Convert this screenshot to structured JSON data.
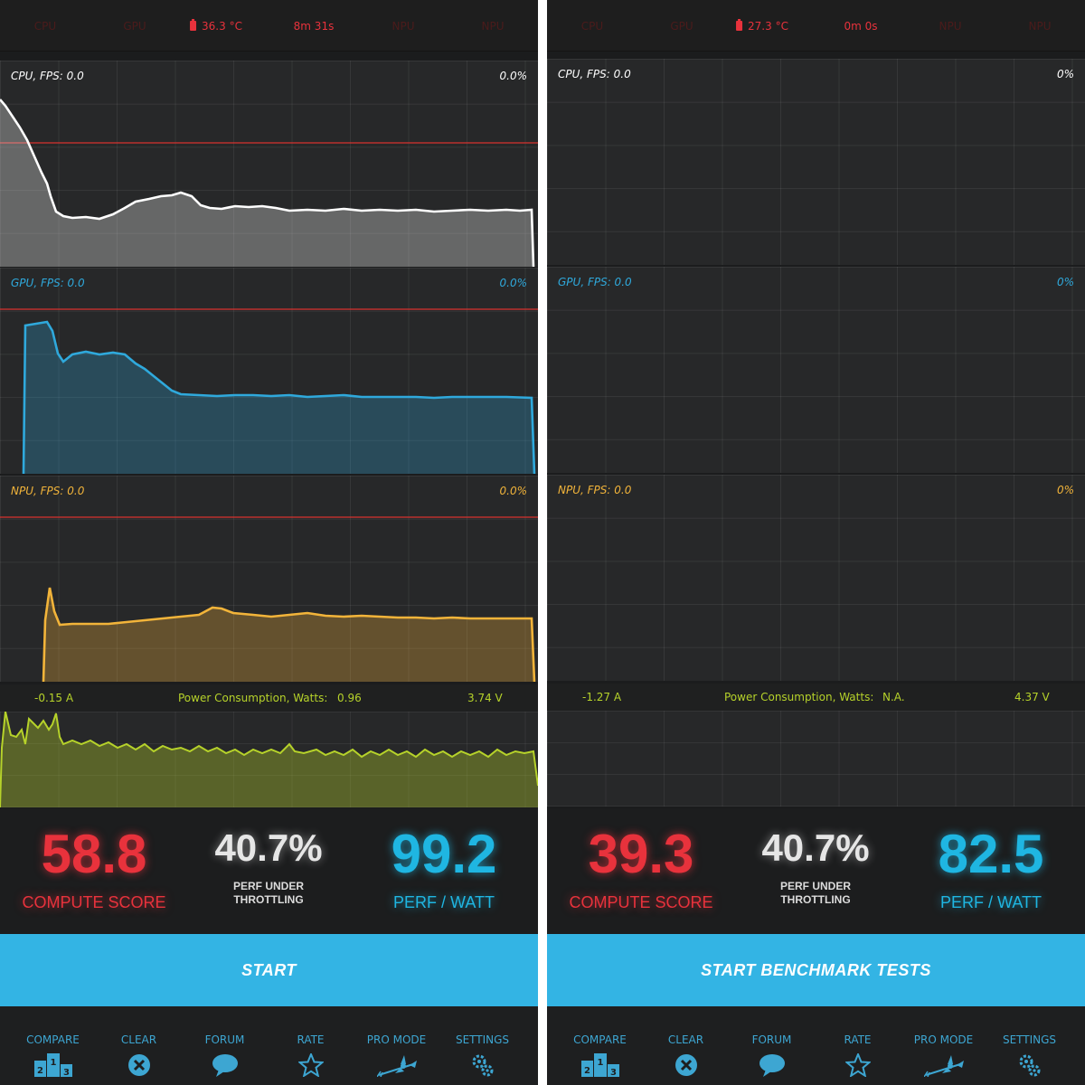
{
  "screens": [
    {
      "status": {
        "cpu": "CPU",
        "gpu": "GPU",
        "temp": "36.3 °C",
        "time": "8m 31s",
        "npu1": "NPU",
        "npu2": "NPU"
      },
      "cpu_panel": {
        "label": "CPU, FPS:  0.0",
        "pct": "0.0%"
      },
      "gpu_panel": {
        "label": "GPU, FPS:  0.0",
        "pct": "0.0%"
      },
      "npu_panel": {
        "label": "NPU, FPS:  0.0",
        "pct": "0.0%"
      },
      "power": {
        "current": "-0.15 A",
        "label": "Power Consumption, Watts:",
        "value": "0.96",
        "voltage": "3.74 V"
      },
      "scores": {
        "compute_value": "58.8",
        "compute_label": "COMPUTE SCORE",
        "throttle_value": "40.7%",
        "throttle_label_1": "PERF UNDER",
        "throttle_label_2": "THROTTLING",
        "perfwatt_value": "99.2",
        "perfwatt_label": "PERF / WATT"
      },
      "start_label": "START"
    },
    {
      "status": {
        "cpu": "CPU",
        "gpu": "GPU",
        "temp": "27.3 °C",
        "time": "0m 0s",
        "npu1": "NPU",
        "npu2": "NPU"
      },
      "cpu_panel": {
        "label": "CPU, FPS:  0.0",
        "pct": "0%"
      },
      "gpu_panel": {
        "label": "GPU, FPS:  0.0",
        "pct": "0%"
      },
      "npu_panel": {
        "label": "NPU, FPS:  0.0",
        "pct": "0%"
      },
      "power": {
        "current": "-1.27 A",
        "label": "Power Consumption, Watts:",
        "value": "N.A.",
        "voltage": "4.37 V"
      },
      "scores": {
        "compute_value": "39.3",
        "compute_label": "COMPUTE SCORE",
        "throttle_value": "40.7%",
        "throttle_label_1": "PERF UNDER",
        "throttle_label_2": "THROTTLING",
        "perfwatt_value": "82.5",
        "perfwatt_label": "PERF / WATT"
      },
      "start_label": "START  BENCHMARK  TESTS"
    }
  ],
  "nav": {
    "compare": "COMPARE",
    "clear": "CLEAR",
    "forum": "FORUM",
    "rate": "RATE",
    "pro_mode": "PRO MODE",
    "settings": "SETTINGS"
  },
  "icons": [
    "podium-icon",
    "clear-x-icon",
    "chat-bubble-icon",
    "star-icon",
    "witch-icon",
    "gear-icon"
  ],
  "colors": {
    "cpu_line": "#ffffff",
    "gpu_line": "#2fa9dc",
    "npu_line": "#f2b43a",
    "power_line": "#b6d22a",
    "threshold": "#d9322f",
    "start_button": "#33b4e4",
    "compute_score": "#e8323c",
    "perf_watt": "#1fb6e2"
  }
}
